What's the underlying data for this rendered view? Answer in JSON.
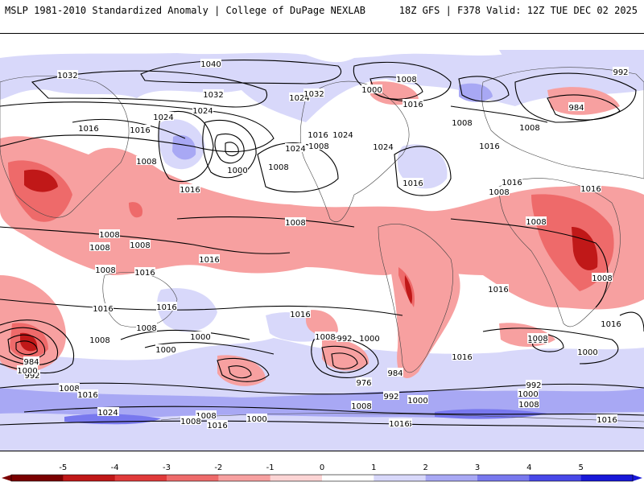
{
  "header": {
    "left_title": "MSLP 1981-2010 Standardized Anomaly | College of DuPage NEXLAB",
    "right_title": "18Z GFS | F378 Valid: 12Z TUE DEC 02 2025"
  },
  "colorbar": {
    "ticks": [
      "-5",
      "-4",
      "-3",
      "-2",
      "-1",
      "0",
      "1",
      "2",
      "3",
      "4",
      "5"
    ],
    "colors": [
      "#7a0000",
      "#c01818",
      "#e03a3a",
      "#ee6a6a",
      "#f7a0a0",
      "#fcd4d4",
      "#ffffff",
      "#d8d8fa",
      "#a8a8f4",
      "#7878ee",
      "#4848e8",
      "#1818d8"
    ]
  },
  "map": {
    "isobar_labels": [
      "1040",
      "1032",
      "1024",
      "1016",
      "1008",
      "1000",
      "992",
      "984",
      "976"
    ],
    "labels": [
      {
        "t": "1040"
      },
      {
        "t": "1032"
      },
      {
        "t": "1032"
      },
      {
        "t": "1024"
      },
      {
        "t": "1024"
      },
      {
        "t": "1016"
      },
      {
        "t": "1016"
      },
      {
        "t": "1024"
      },
      {
        "t": "1008"
      },
      {
        "t": "1016"
      },
      {
        "t": "1008"
      },
      {
        "t": "1000"
      },
      {
        "t": "1008"
      },
      {
        "t": "1024"
      },
      {
        "t": "1016"
      },
      {
        "t": "1024"
      },
      {
        "t": "1008"
      },
      {
        "t": "1032"
      },
      {
        "t": "1008"
      },
      {
        "t": "1016"
      },
      {
        "t": "1024"
      },
      {
        "t": "1000"
      },
      {
        "t": "992"
      },
      {
        "t": "1016"
      },
      {
        "t": "984"
      },
      {
        "t": "1008"
      },
      {
        "t": "1016"
      },
      {
        "t": "1016"
      },
      {
        "t": "1008"
      },
      {
        "t": "1016"
      },
      {
        "t": "1008"
      },
      {
        "t": "1008"
      },
      {
        "t": "1008"
      },
      {
        "t": "1008"
      },
      {
        "t": "1008"
      },
      {
        "t": "1016"
      },
      {
        "t": "1008"
      },
      {
        "t": "1016"
      },
      {
        "t": "1008"
      },
      {
        "t": "1016"
      },
      {
        "t": "1016"
      },
      {
        "t": "1008"
      },
      {
        "t": "1016"
      },
      {
        "t": "1000"
      },
      {
        "t": "992"
      },
      {
        "t": "1008"
      },
      {
        "t": "1000"
      },
      {
        "t": "984"
      },
      {
        "t": "992"
      },
      {
        "t": "1000"
      },
      {
        "t": "1008"
      },
      {
        "t": "1016"
      },
      {
        "t": "1024"
      },
      {
        "t": "1000"
      },
      {
        "t": "1008"
      },
      {
        "t": "992"
      },
      {
        "t": "984"
      },
      {
        "t": "976"
      },
      {
        "t": "1000"
      },
      {
        "t": "1008"
      },
      {
        "t": "1016"
      },
      {
        "t": "1016"
      },
      {
        "t": "1008"
      },
      {
        "t": "1000"
      },
      {
        "t": "992"
      },
      {
        "t": "1000"
      },
      {
        "t": "1008"
      },
      {
        "t": "1016"
      },
      {
        "t": "1016"
      },
      {
        "t": "1008"
      },
      {
        "t": "1008"
      },
      {
        "t": "1000"
      },
      {
        "t": "1016"
      },
      {
        "t": "1016"
      },
      {
        "t": "1008"
      },
      {
        "t": "1016"
      },
      {
        "t": "1024"
      }
    ]
  }
}
